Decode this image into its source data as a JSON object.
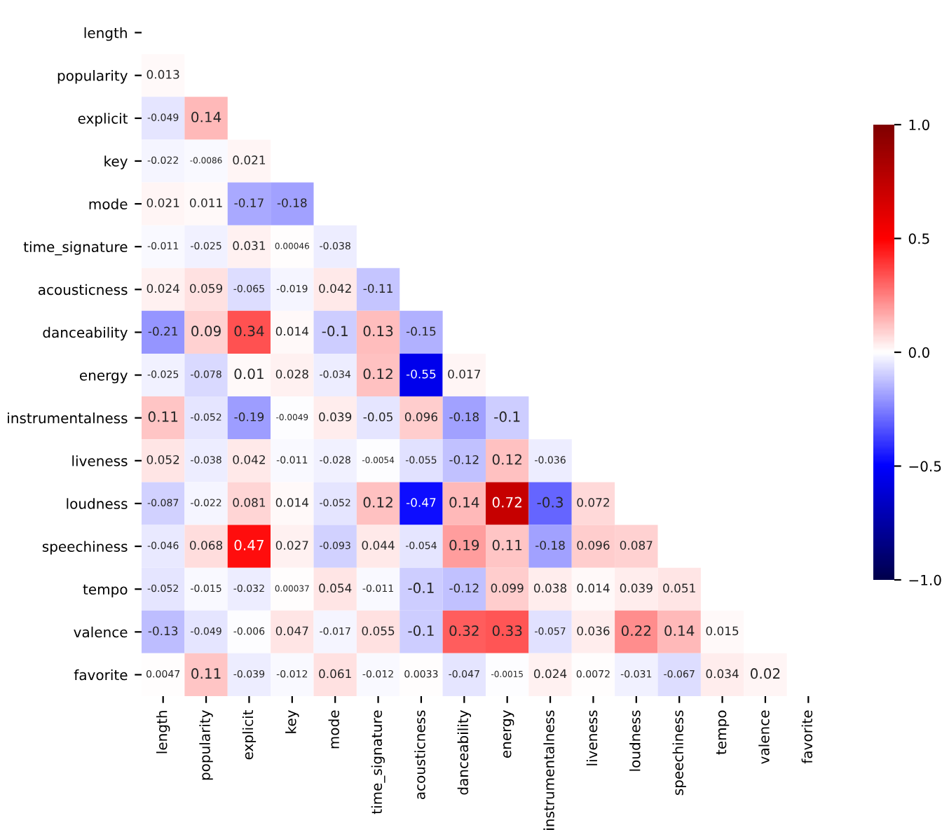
{
  "chart_data": {
    "type": "heatmap",
    "categories": [
      "length",
      "popularity",
      "explicit",
      "key",
      "mode",
      "time_signature",
      "acousticness",
      "danceability",
      "energy",
      "instrumentalness",
      "liveness",
      "loudness",
      "speechiness",
      "tempo",
      "valence",
      "favorite"
    ],
    "y_categories": [
      "length",
      "popularity",
      "explicit",
      "key",
      "mode",
      "time_signature",
      "acousticness",
      "danceability",
      "energy",
      "instrumentalness",
      "liveness",
      "loudness",
      "speechiness",
      "tempo",
      "valence",
      "favorite"
    ],
    "cells": [
      [
        null,
        null,
        null,
        null,
        null,
        null,
        null,
        null,
        null,
        null,
        null,
        null,
        null,
        null,
        null,
        null
      ],
      [
        0.013,
        null,
        null,
        null,
        null,
        null,
        null,
        null,
        null,
        null,
        null,
        null,
        null,
        null,
        null,
        null
      ],
      [
        -0.049,
        0.14,
        null,
        null,
        null,
        null,
        null,
        null,
        null,
        null,
        null,
        null,
        null,
        null,
        null,
        null
      ],
      [
        -0.022,
        -0.0086,
        0.021,
        null,
        null,
        null,
        null,
        null,
        null,
        null,
        null,
        null,
        null,
        null,
        null,
        null
      ],
      [
        0.021,
        0.011,
        -0.17,
        -0.18,
        null,
        null,
        null,
        null,
        null,
        null,
        null,
        null,
        null,
        null,
        null,
        null
      ],
      [
        -0.011,
        -0.025,
        0.031,
        0.00046,
        -0.038,
        null,
        null,
        null,
        null,
        null,
        null,
        null,
        null,
        null,
        null,
        null
      ],
      [
        0.024,
        0.059,
        -0.065,
        -0.019,
        0.042,
        -0.11,
        null,
        null,
        null,
        null,
        null,
        null,
        null,
        null,
        null,
        null
      ],
      [
        -0.21,
        0.09,
        0.34,
        0.014,
        -0.1,
        0.13,
        -0.15,
        null,
        null,
        null,
        null,
        null,
        null,
        null,
        null,
        null
      ],
      [
        -0.025,
        -0.078,
        0.01,
        0.028,
        -0.034,
        0.12,
        -0.55,
        0.017,
        null,
        null,
        null,
        null,
        null,
        null,
        null,
        null
      ],
      [
        0.11,
        -0.052,
        -0.19,
        -0.0049,
        0.039,
        -0.05,
        0.096,
        -0.18,
        -0.1,
        null,
        null,
        null,
        null,
        null,
        null,
        null
      ],
      [
        0.052,
        -0.038,
        0.042,
        -0.011,
        -0.028,
        -0.0054,
        -0.055,
        -0.12,
        0.12,
        -0.036,
        null,
        null,
        null,
        null,
        null,
        null
      ],
      [
        -0.087,
        -0.022,
        0.081,
        0.014,
        -0.052,
        0.12,
        -0.47,
        0.14,
        0.72,
        -0.3,
        0.072,
        null,
        null,
        null,
        null,
        null
      ],
      [
        -0.046,
        0.068,
        0.47,
        0.027,
        -0.093,
        0.044,
        -0.054,
        0.19,
        0.11,
        -0.18,
        0.096,
        0.087,
        null,
        null,
        null,
        null
      ],
      [
        -0.052,
        -0.015,
        -0.032,
        0.00037,
        0.054,
        -0.011,
        -0.1,
        -0.12,
        0.099,
        0.038,
        0.014,
        0.039,
        0.051,
        null,
        null,
        null
      ],
      [
        -0.13,
        -0.049,
        -0.006,
        0.047,
        -0.017,
        0.055,
        -0.1,
        0.32,
        0.33,
        -0.057,
        0.036,
        0.22,
        0.14,
        0.015,
        null,
        null
      ],
      [
        0.0047,
        0.11,
        -0.039,
        -0.012,
        0.061,
        -0.012,
        0.0033,
        -0.047,
        -0.0015,
        0.024,
        0.0072,
        -0.031,
        -0.067,
        0.034,
        0.02,
        null
      ]
    ],
    "data_labels": true,
    "clim": [
      -1.0,
      1.0
    ],
    "cticks": [
      {
        "value": -1.0,
        "label": "−1.0"
      },
      {
        "value": -0.5,
        "label": "−0.5"
      },
      {
        "value": 0.0,
        "label": "0.0"
      },
      {
        "value": 0.5,
        "label": "0.5"
      },
      {
        "value": 1.0,
        "label": "1.0"
      }
    ]
  }
}
